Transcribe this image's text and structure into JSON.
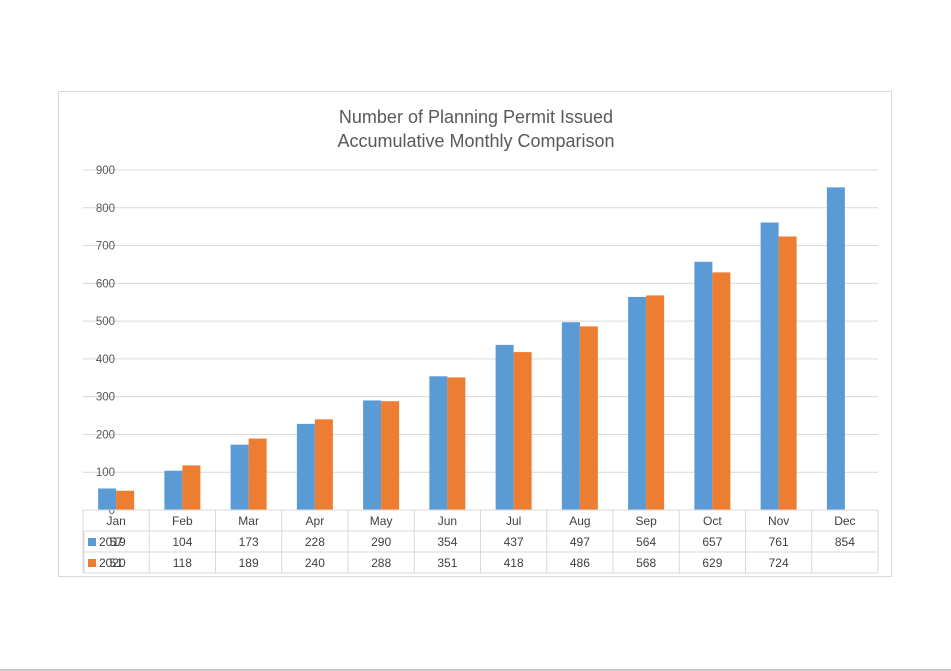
{
  "chart_data": {
    "type": "bar",
    "title": "Number of Planning Permit Issued",
    "subtitle": "Accumulative Monthly Comparison",
    "categories": [
      "Jan",
      "Feb",
      "Mar",
      "Apr",
      "May",
      "Jun",
      "Jul",
      "Aug",
      "Sep",
      "Oct",
      "Nov",
      "Dec"
    ],
    "series": [
      {
        "name": "2019",
        "color": "#5b9bd5",
        "values": [
          57,
          104,
          173,
          228,
          290,
          354,
          437,
          497,
          564,
          657,
          761,
          854
        ],
        "labels": [
          "57",
          "104",
          "173",
          "228",
          "290",
          "354",
          "437",
          "497",
          "564",
          "657",
          "761",
          "854"
        ]
      },
      {
        "name": "2020",
        "color": "#ed7d31",
        "values": [
          51,
          118,
          189,
          240,
          288,
          351,
          418,
          486,
          568,
          629,
          724,
          null
        ],
        "labels": [
          "51",
          "118",
          "189",
          "240",
          "288",
          "351",
          "418",
          "486",
          "568",
          "629",
          "724",
          ""
        ]
      }
    ],
    "yticks": [
      "0",
      "100",
      "200",
      "300",
      "400",
      "500",
      "600",
      "700",
      "800",
      "900"
    ],
    "ylim": [
      0,
      900
    ],
    "grid": true,
    "legend": "data-table"
  }
}
